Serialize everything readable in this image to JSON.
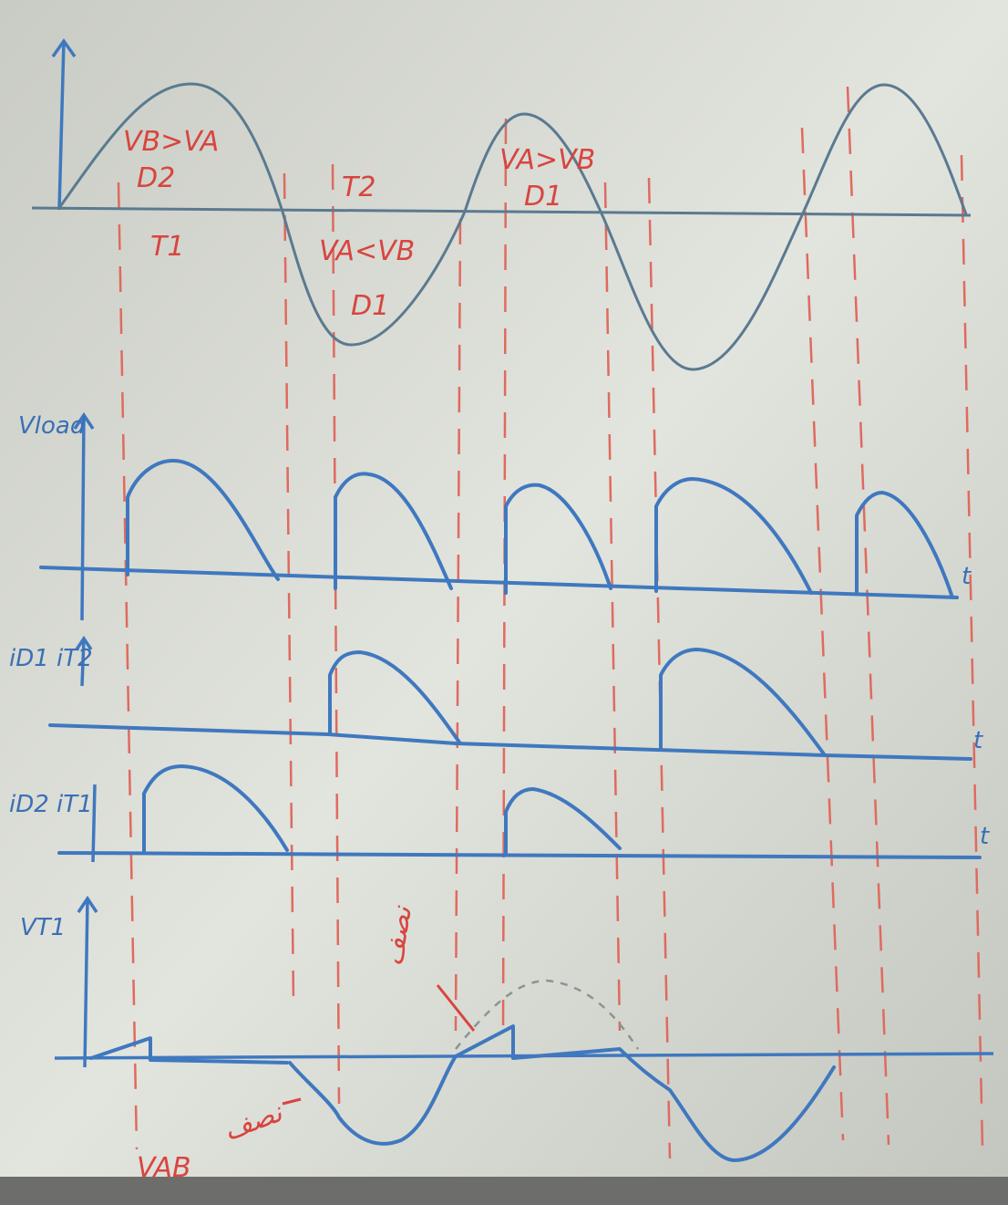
{
  "labels": [
    "VB>VA",
    "D2",
    "T1",
    "T2",
    "VA<VB",
    "D1",
    "VA>VB",
    "D1",
    "Vload",
    "iD1 iT2",
    "iD2 iT1",
    "VT1",
    "VAB",
    "t",
    "t",
    "t",
    "نصف",
    "نصف"
  ]
}
